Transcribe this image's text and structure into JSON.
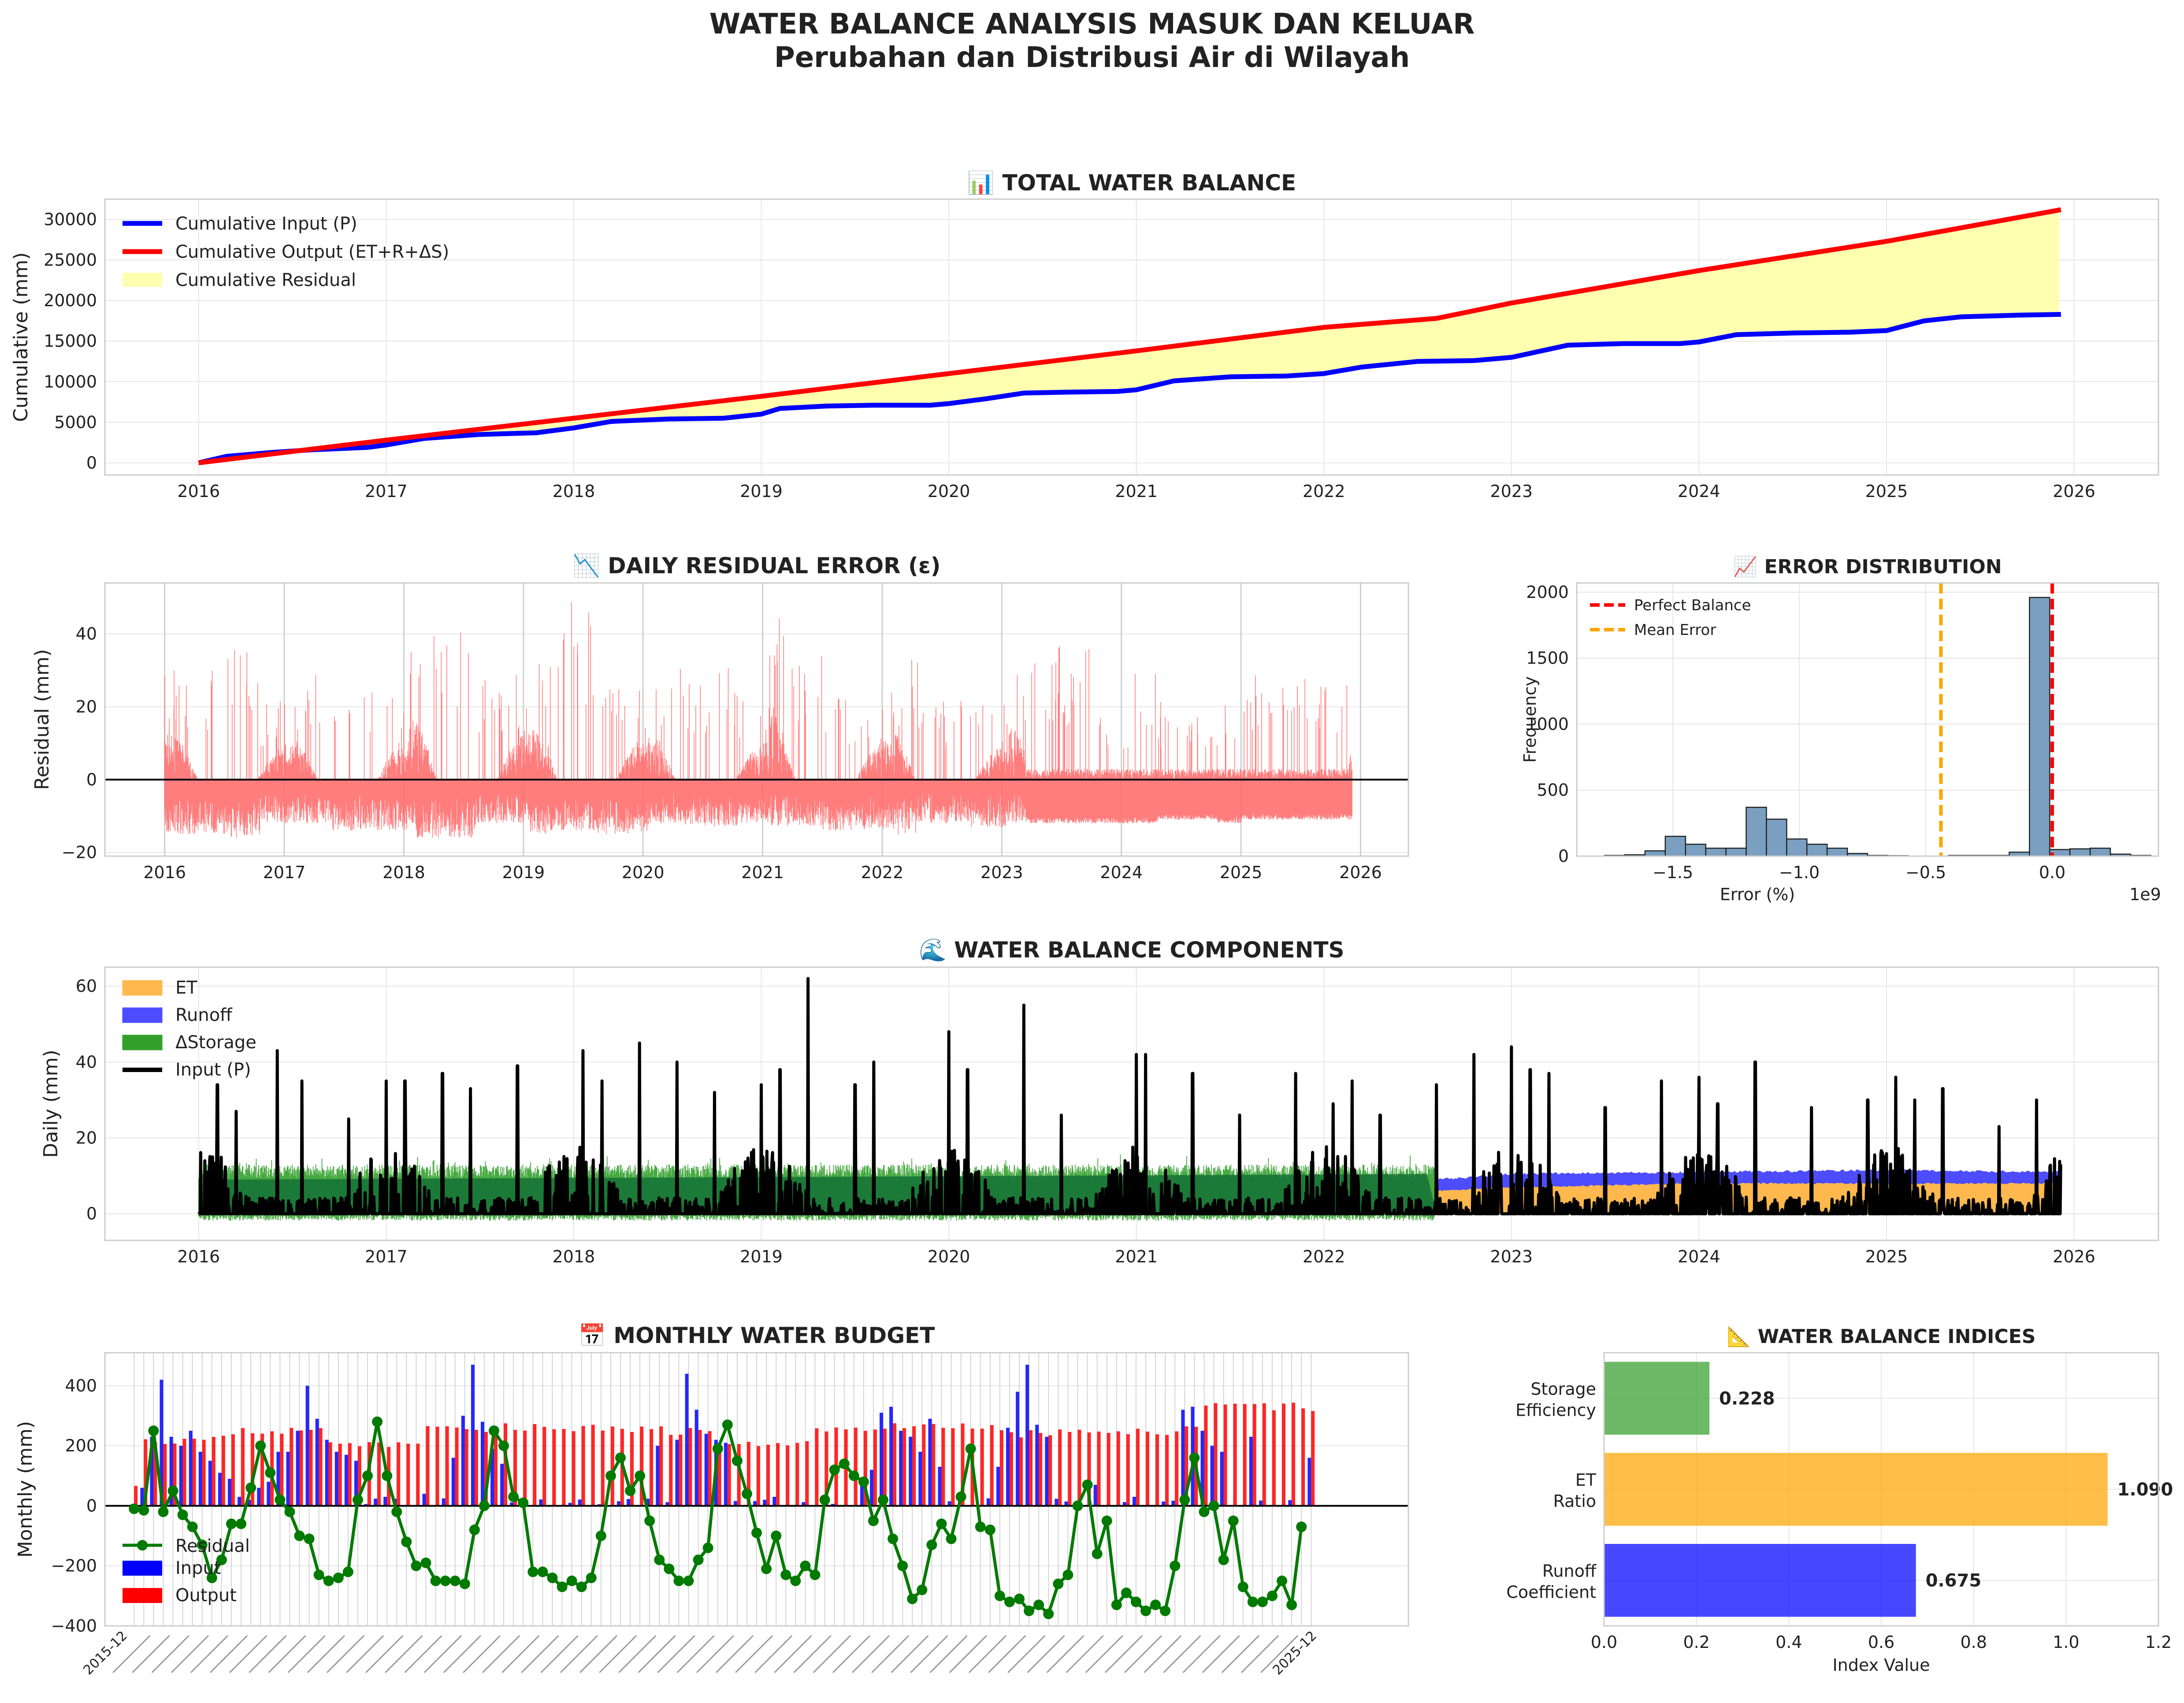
{
  "figure": {
    "title": "WATER BALANCE ANALYSIS MASUK DAN KELUAR",
    "subtitle": "Perubahan dan Distribusi Air di Wilayah"
  },
  "colors": {
    "input": "#0000ff",
    "output": "#ff0000",
    "residual_fill": "#ffffb0",
    "residual_line": "#ff6666",
    "et": "#ffb84d",
    "runoff": "#4d4dff",
    "storage": "#33a02c",
    "storage_dark": "#0e6b36",
    "hist": "#7a9fc0",
    "mean_error": "#ffa500",
    "budget_residual": "#007a00"
  },
  "chart_data": [
    {
      "id": "total",
      "type": "line",
      "title": "📊 TOTAL WATER BALANCE",
      "ylabel": "Cumulative (mm)",
      "xlim": [
        2015.5,
        2026.45
      ],
      "ylim": [
        -1500,
        32500
      ],
      "xticks": [
        "2016",
        "2017",
        "2018",
        "2019",
        "2020",
        "2021",
        "2022",
        "2023",
        "2024",
        "2025",
        "2026"
      ],
      "yticks": [
        "0",
        "5000",
        "10000",
        "15000",
        "20000",
        "25000",
        "30000"
      ],
      "legend": {
        "position": "upper left",
        "entries": [
          "Cumulative Input (P)",
          "Cumulative Output (ET+R+ΔS)",
          "Cumulative Residual"
        ]
      },
      "series": [
        {
          "name": "Cumulative Input (P)",
          "x": [
            2016.0,
            2016.15,
            2016.4,
            2016.6,
            2016.9,
            2017.0,
            2017.2,
            2017.5,
            2017.8,
            2018.0,
            2018.2,
            2018.5,
            2018.8,
            2019.0,
            2019.1,
            2019.35,
            2019.6,
            2019.9,
            2020.0,
            2020.2,
            2020.4,
            2020.6,
            2020.9,
            2021.0,
            2021.2,
            2021.5,
            2021.8,
            2022.0,
            2022.2,
            2022.5,
            2022.8,
            2023.0,
            2023.1,
            2023.3,
            2023.6,
            2023.9,
            2024.0,
            2024.2,
            2024.5,
            2024.8,
            2025.0,
            2025.2,
            2025.4,
            2025.7,
            2025.93
          ],
          "values": [
            0,
            800,
            1300,
            1600,
            1900,
            2200,
            3000,
            3500,
            3700,
            4300,
            5100,
            5400,
            5500,
            6000,
            6700,
            7000,
            7100,
            7100,
            7300,
            7900,
            8600,
            8700,
            8800,
            9000,
            10100,
            10600,
            10700,
            11000,
            11800,
            12500,
            12600,
            13000,
            13500,
            14500,
            14700,
            14700,
            14900,
            15800,
            16000,
            16100,
            16300,
            17500,
            18000,
            18200,
            18300
          ]
        },
        {
          "name": "Cumulative Output (ET+R+ΔS)",
          "x": [
            2016.0,
            2017.0,
            2018.0,
            2019.0,
            2020.0,
            2021.0,
            2022.0,
            2022.6,
            2023.0,
            2024.0,
            2025.0,
            2025.93
          ],
          "values": [
            0,
            2800,
            5500,
            8200,
            11000,
            13800,
            16700,
            17800,
            19700,
            23700,
            27300,
            31200
          ]
        }
      ]
    },
    {
      "id": "residual",
      "type": "line",
      "title": "📉 DAILY RESIDUAL ERROR (ε)",
      "ylabel": "Residual (mm)",
      "xlim": [
        2015.5,
        2026.4
      ],
      "ylim": [
        -21,
        54
      ],
      "xticks": [
        "2016",
        "2017",
        "2018",
        "2019",
        "2020",
        "2021",
        "2022",
        "2023",
        "2024",
        "2025",
        "2026"
      ],
      "yticks": [
        "−20",
        "0",
        "20",
        "40"
      ],
      "series": [
        {
          "name": "Residual",
          "x": [
            2016.1,
            2016.4,
            2016.8,
            2017.1,
            2017.4,
            2018.05,
            2018.1,
            2018.6,
            2019.05,
            2019.2,
            2019.6,
            2020.05,
            2020.3,
            2020.8,
            2021.05,
            2021.2,
            2021.5,
            2022.1,
            2022.3,
            2022.7,
            2023.05,
            2023.3,
            2023.8,
            2024.1,
            2024.3,
            2024.8,
            2025.0,
            2025.2,
            2025.9
          ],
          "high": [
            30,
            36,
            22,
            29,
            25,
            38,
            42,
            30,
            33,
            50,
            26,
            26,
            31,
            23,
            49,
            34,
            24,
            33,
            22,
            21,
            35,
            37,
            18,
            30,
            22,
            27,
            31,
            32,
            8
          ],
          "low": [
            -15,
            -16,
            -12,
            -12,
            -14,
            -14,
            -16,
            -12,
            -15,
            -14,
            -15,
            -12,
            -13,
            -12,
            -13,
            -13,
            -14,
            -15,
            -12,
            -13,
            -12,
            -12,
            -12,
            -12,
            -11,
            -12,
            -11,
            -11,
            -11
          ]
        }
      ]
    },
    {
      "id": "distribution",
      "type": "bar",
      "title": "📈 ERROR DISTRIBUTION",
      "xlabel": "Error (%)",
      "ylabel": "Frequency",
      "x_multiplier": "1e9",
      "xlim": [
        -1.88,
        0.42
      ],
      "ylim": [
        0,
        2070
      ],
      "xticks": [
        "−1.5",
        "−1.0",
        "−0.5",
        "0.0"
      ],
      "yticks": [
        "0",
        "500",
        "1000",
        "1500",
        "2000"
      ],
      "legend": {
        "position": "upper left",
        "entries": [
          "Perfect Balance",
          "Mean Error"
        ]
      },
      "bin_centers": [
        -1.73,
        -1.65,
        -1.57,
        -1.49,
        -1.41,
        -1.33,
        -1.25,
        -1.17,
        -1.09,
        -1.01,
        -0.93,
        -0.85,
        -0.77,
        -0.69,
        -0.61,
        -0.53,
        -0.45,
        -0.37,
        -0.29,
        -0.21,
        -0.13,
        -0.05,
        0.03,
        0.11,
        0.19,
        0.27,
        0.35
      ],
      "values": [
        5,
        10,
        40,
        150,
        90,
        60,
        60,
        370,
        280,
        130,
        90,
        60,
        20,
        5,
        3,
        0,
        0,
        5,
        5,
        5,
        30,
        1960,
        50,
        55,
        60,
        15,
        5
      ],
      "perfect_balance": 0.0,
      "mean_error": -0.44
    },
    {
      "id": "components",
      "type": "area",
      "title": "🌊 WATER BALANCE COMPONENTS",
      "ylabel": "Daily (mm)",
      "xlim": [
        2015.5,
        2026.45
      ],
      "ylim": [
        -7,
        65
      ],
      "xticks": [
        "2016",
        "2017",
        "2018",
        "2019",
        "2020",
        "2021",
        "2022",
        "2023",
        "2024",
        "2025",
        "2026"
      ],
      "yticks": [
        "0",
        "20",
        "40",
        "60"
      ],
      "legend": {
        "position": "upper left",
        "entries": [
          "ET",
          "Runoff",
          "ΔStorage",
          "Input (P)"
        ]
      },
      "series": [
        {
          "name": "ΔStorage",
          "x_start": 2016.0,
          "x_end": 2022.6,
          "typical": 13,
          "max": 16,
          "min": -3
        },
        {
          "name": "ET",
          "x_start": 2022.6,
          "x_end": 2025.93,
          "values_at": [
            2022.6,
            2023.0,
            2024.0,
            2025.0,
            2025.93
          ],
          "values": [
            6,
            7,
            8,
            8,
            8
          ]
        },
        {
          "name": "Runoff",
          "x_start": 2022.6,
          "x_end": 2025.93,
          "values_at": [
            2022.6,
            2023.0,
            2024.0,
            2025.0,
            2025.93
          ],
          "values": [
            9,
            10.5,
            11,
            11.5,
            11
          ]
        },
        {
          "name": "Input (P)",
          "peaks_x": [
            2016.1,
            2016.2,
            2016.42,
            2016.55,
            2016.8,
            2017.0,
            2017.1,
            2017.3,
            2017.45,
            2017.7,
            2018.05,
            2018.15,
            2018.35,
            2018.55,
            2018.75,
            2019.0,
            2019.1,
            2019.25,
            2019.5,
            2019.6,
            2020.0,
            2020.1,
            2020.4,
            2020.6,
            2021.0,
            2021.05,
            2021.3,
            2021.55,
            2021.85,
            2022.05,
            2022.15,
            2022.3,
            2022.6,
            2022.8,
            2023.0,
            2023.1,
            2023.2,
            2023.5,
            2023.8,
            2024.0,
            2024.1,
            2024.3,
            2024.6,
            2024.9,
            2025.05,
            2025.15,
            2025.3,
            2025.6,
            2025.8
          ],
          "peaks": [
            34,
            27,
            43,
            35,
            25,
            35,
            35,
            37,
            33,
            39,
            43,
            35,
            45,
            40,
            32,
            34,
            38,
            62,
            34,
            40,
            48,
            38,
            55,
            26,
            42,
            42,
            37,
            26,
            37,
            29,
            35,
            26,
            34,
            42,
            44,
            38,
            37,
            28,
            35,
            36,
            29,
            40,
            28,
            30,
            36,
            30,
            33,
            23,
            30
          ]
        }
      ]
    },
    {
      "id": "monthly",
      "type": "bar",
      "title": "📅 MONTHLY WATER BUDGET",
      "ylabel": "Monthly (mm)",
      "ylim": [
        -400,
        510
      ],
      "yticks": [
        "−400",
        "−200",
        "0",
        "200",
        "400"
      ],
      "legend": {
        "position": "lower left",
        "entries": [
          "Residual",
          "Input",
          "Output"
        ]
      },
      "first_category": "2015-12",
      "last_category": "2025-12",
      "input_peaks": [
        [
          1,
          60
        ],
        [
          2,
          230
        ],
        [
          3,
          420
        ],
        [
          4,
          230
        ],
        [
          5,
          200
        ],
        [
          6,
          250
        ],
        [
          7,
          180
        ],
        [
          8,
          150
        ],
        [
          9,
          110
        ],
        [
          10,
          90
        ],
        [
          11,
          30
        ],
        [
          12,
          20
        ],
        [
          13,
          60
        ],
        [
          14,
          80
        ],
        [
          15,
          180
        ],
        [
          16,
          180
        ],
        [
          17,
          250
        ],
        [
          18,
          400
        ],
        [
          19,
          290
        ],
        [
          20,
          220
        ],
        [
          21,
          180
        ],
        [
          22,
          170
        ],
        [
          23,
          150
        ],
        [
          26,
          30
        ],
        [
          30,
          40
        ],
        [
          33,
          160
        ],
        [
          34,
          300
        ],
        [
          35,
          470
        ],
        [
          36,
          280
        ],
        [
          37,
          190
        ],
        [
          38,
          140
        ],
        [
          45,
          10
        ],
        [
          54,
          200
        ],
        [
          56,
          220
        ],
        [
          57,
          440
        ],
        [
          58,
          320
        ],
        [
          59,
          240
        ],
        [
          60,
          220
        ],
        [
          61,
          210
        ],
        [
          66,
          30
        ],
        [
          75,
          80
        ],
        [
          76,
          120
        ],
        [
          77,
          310
        ],
        [
          78,
          330
        ],
        [
          79,
          250
        ],
        [
          80,
          230
        ],
        [
          81,
          180
        ],
        [
          82,
          290
        ],
        [
          83,
          130
        ],
        [
          89,
          130
        ],
        [
          90,
          260
        ],
        [
          91,
          380
        ],
        [
          92,
          470
        ],
        [
          93,
          270
        ],
        [
          94,
          230
        ],
        [
          99,
          70
        ],
        [
          103,
          30
        ],
        [
          108,
          320
        ],
        [
          109,
          330
        ],
        [
          110,
          250
        ],
        [
          111,
          200
        ],
        [
          112,
          180
        ],
        [
          115,
          230
        ],
        [
          121,
          160
        ],
        [
          122,
          200
        ],
        [
          126,
          230
        ],
        [
          127,
          310
        ],
        [
          128,
          300
        ],
        [
          129,
          250
        ],
        [
          130,
          320
        ],
        [
          131,
          200
        ],
        [
          132,
          250
        ],
        [
          133,
          220
        ],
        [
          144,
          90
        ],
        [
          145,
          210
        ],
        [
          146,
          320
        ],
        [
          147,
          330
        ],
        [
          148,
          320
        ],
        [
          149,
          260
        ],
        [
          153,
          130
        ],
        [
          156,
          310
        ],
        [
          157,
          330
        ],
        [
          158,
          460
        ],
        [
          159,
          310
        ],
        [
          160,
          270
        ],
        [
          161,
          320
        ],
        [
          169,
          90
        ]
      ],
      "output_typical": [
        [
          0,
          70
        ],
        [
          1,
          220
        ],
        [
          10,
          250
        ],
        [
          20,
          210
        ],
        [
          30,
          260
        ],
        [
          40,
          260
        ],
        [
          50,
          250
        ],
        [
          60,
          210
        ],
        [
          70,
          260
        ],
        [
          80,
          260
        ],
        [
          90,
          240
        ],
        [
          100,
          250
        ],
        [
          110,
          330
        ],
        [
          120,
          320
        ],
        [
          130,
          310
        ],
        [
          140,
          330
        ],
        [
          150,
          330
        ],
        [
          160,
          330
        ],
        [
          168,
          340
        ],
        [
          170,
          70
        ]
      ],
      "residual_series": [
        -10,
        -15,
        250,
        -20,
        50,
        -30,
        -70,
        -130,
        -240,
        -180,
        -60,
        -60,
        60,
        200,
        110,
        20,
        -20,
        -100,
        -110,
        -230,
        -250,
        -240,
        -220,
        20,
        100,
        280,
        100,
        -20,
        -120,
        -200,
        -190,
        -250,
        -250,
        -250,
        -260,
        -80,
        0,
        250,
        200,
        30,
        10,
        -220,
        -220,
        -240,
        -270,
        -250,
        -270,
        -240,
        -100,
        100,
        160,
        50,
        100,
        -50,
        -180,
        -210,
        -250,
        -250,
        -180,
        -140,
        190,
        270,
        150,
        40,
        -90,
        -210,
        -100,
        -230,
        -250,
        -200,
        -230,
        20,
        120,
        140,
        100,
        80,
        -50,
        20,
        -110,
        -200,
        -310,
        -280,
        -130,
        -60,
        -110,
        30,
        190,
        -70,
        -80,
        -300,
        -320,
        -310,
        -350,
        -330,
        -360,
        -260,
        -230,
        0,
        70,
        -160,
        -50,
        -330,
        -290,
        -320,
        -350,
        -330,
        -350,
        -200,
        20,
        160,
        -20,
        0,
        -180,
        -50,
        -270,
        -320,
        -320,
        -300,
        -250,
        -330,
        -70
      ]
    },
    {
      "id": "indices",
      "type": "bar",
      "title": "📐 WATER BALANCE INDICES",
      "xlabel": "Index Value",
      "xlim": [
        0,
        1.2
      ],
      "xticks": [
        "0.0",
        "0.2",
        "0.4",
        "0.6",
        "0.8",
        "1.0",
        "1.2"
      ],
      "categories": [
        "Storage\nEfficiency",
        "ET\nRatio",
        "Runoff\nCoefficient"
      ],
      "category_lines": [
        [
          "Storage",
          "Efficiency"
        ],
        [
          "ET",
          "Ratio"
        ],
        [
          "Runoff",
          "Coefficient"
        ]
      ],
      "values": [
        0.228,
        1.09,
        0.675
      ],
      "value_labels": [
        "0.228",
        "1.090",
        "0.675"
      ],
      "bar_colors": [
        "#33a02c",
        "#ffa500",
        "#0000ff"
      ]
    }
  ]
}
